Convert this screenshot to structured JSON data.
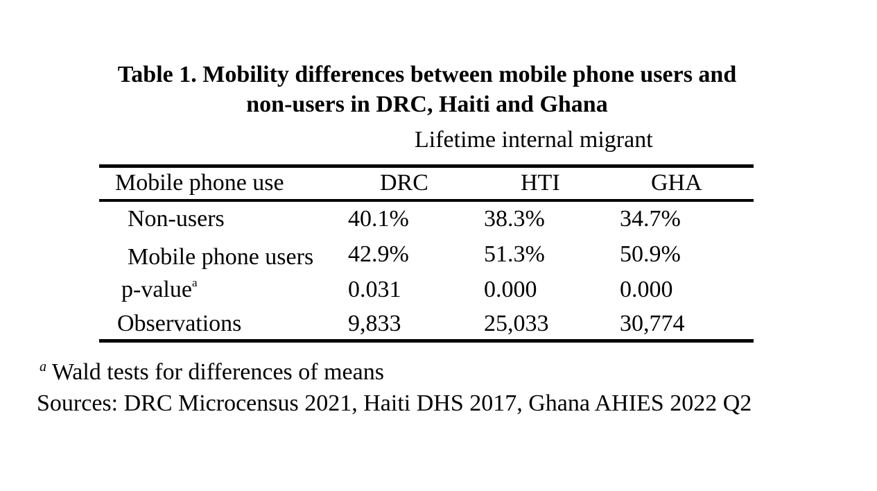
{
  "table": {
    "title_line1": "Table 1. Mobility differences between mobile phone users and",
    "title_line2": "non-users in DRC, Haiti and Ghana",
    "spanner": "Lifetime internal migrant",
    "columns": [
      "Mobile phone use",
      "DRC",
      "HTI",
      "GHA"
    ],
    "rows": [
      {
        "label": "Non-users",
        "values": [
          "40.1%",
          "38.3%",
          "34.7%"
        ]
      },
      {
        "label": "Mobile phone users",
        "values": [
          "42.9%",
          "51.3%",
          "50.9%"
        ]
      },
      {
        "label": "p-value",
        "label_sup": "a",
        "values": [
          "0.031",
          "0.000",
          "0.000"
        ]
      },
      {
        "label": "Observations",
        "values": [
          "9,833",
          "25,033",
          "30,774"
        ]
      }
    ]
  },
  "notes": {
    "footnote_marker": "a",
    "footnote_text": "Wald tests for differences of means",
    "sources": "Sources: DRC Microcensus 2021, Haiti DHS 2017, Ghana AHIES 2022 Q2"
  }
}
